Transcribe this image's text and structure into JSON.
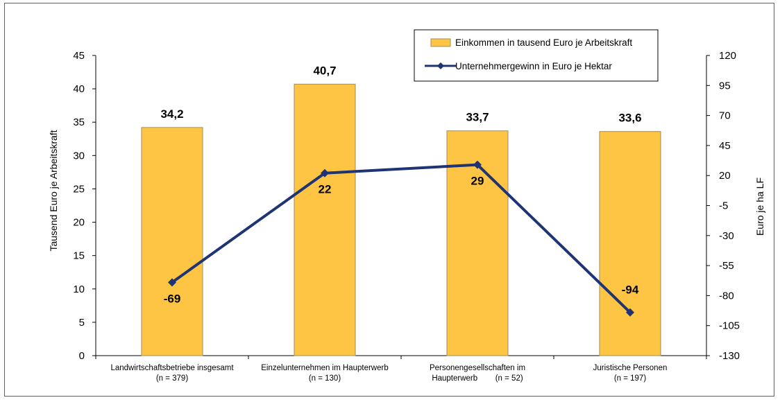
{
  "chart_data": {
    "type": "bar",
    "categories": [
      [
        "Landwirtschaftsbetriebe insgesamt",
        "(n = 379)"
      ],
      [
        "Einzelunternehmen im Haupterwerb",
        "(n = 130)"
      ],
      [
        "Personengesellschaften im",
        "Haupterwerb        (n = 52)"
      ],
      [
        "Juristische Personen",
        "(n = 197)"
      ]
    ],
    "series": [
      {
        "name": "Einkommen in tausend Euro je Arbeitskraft",
        "type": "bar",
        "axis": "left",
        "values": [
          34.2,
          40.7,
          33.7,
          33.6
        ],
        "labels": [
          "34,2",
          "40,7",
          "33,7",
          "33,6"
        ],
        "color": "#fdc543",
        "border": "#a08d5e"
      },
      {
        "name": "Unternehmergewinn in Euro je Hektar",
        "type": "line",
        "axis": "right",
        "values": [
          -69,
          22,
          29,
          -94
        ],
        "labels": [
          "-69",
          "22",
          "29",
          "-94"
        ],
        "color": "#1f3474"
      }
    ],
    "ylabel": "Tausend Euro je Arbeitskraft",
    "y2label": "Euro je ha  LF",
    "ylim": [
      0,
      45
    ],
    "yticks": [
      0,
      5,
      10,
      15,
      20,
      25,
      30,
      35,
      40,
      45
    ],
    "y2lim": [
      -130,
      120
    ],
    "y2ticks": [
      -130,
      -105,
      -80,
      -55,
      -30,
      -5,
      20,
      45,
      70,
      95,
      120
    ],
    "legend_position": "top-right",
    "grid": false
  }
}
